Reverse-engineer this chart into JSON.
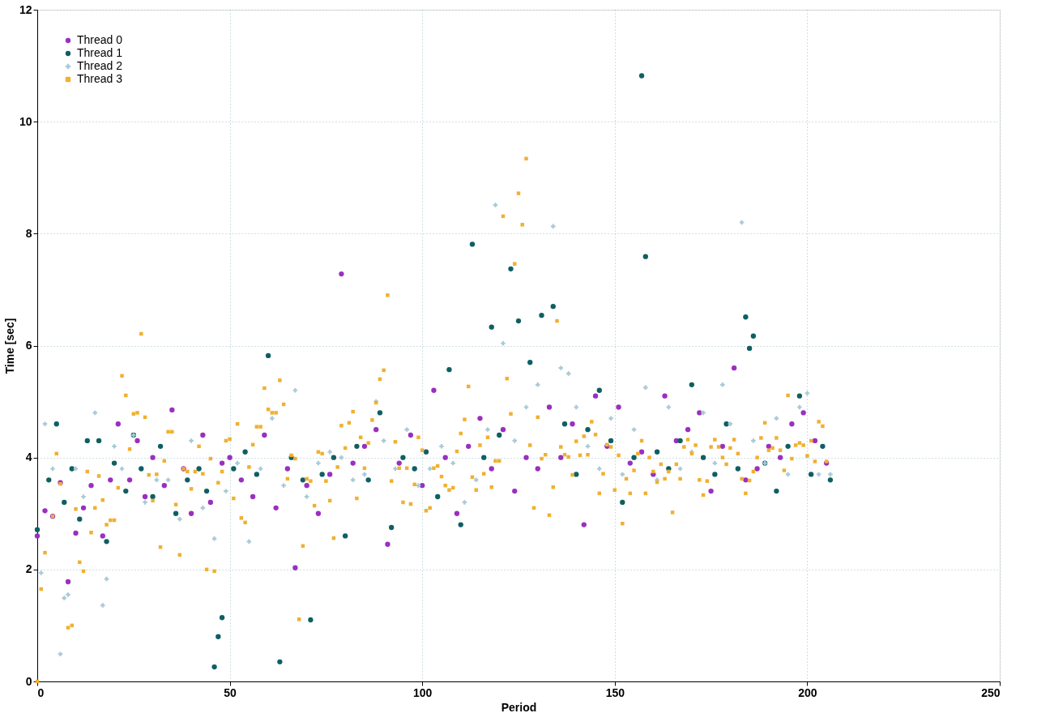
{
  "chart_data": {
    "type": "scatter",
    "xlabel": "Period",
    "ylabel": "Time [sec]",
    "xlim": [
      0,
      250
    ],
    "ylim": [
      0,
      12
    ],
    "xticks": [
      0,
      50,
      100,
      150,
      200,
      250
    ],
    "yticks": [
      0,
      2,
      4,
      6,
      8,
      10,
      12
    ],
    "grid": true,
    "legend": "top left",
    "series": [
      {
        "name": "Thread 0",
        "color": "#9a2fc0",
        "marker": "circle",
        "x": [
          0,
          2,
          4,
          6,
          8,
          10,
          12,
          14,
          17,
          19,
          21,
          24,
          26,
          28,
          30,
          33,
          35,
          38,
          40,
          43,
          45,
          48,
          50,
          53,
          56,
          59,
          62,
          65,
          67,
          70,
          73,
          76,
          79,
          82,
          85,
          88,
          91,
          94,
          97,
          100,
          103,
          106,
          109,
          112,
          115,
          118,
          121,
          124,
          127,
          130,
          133,
          136,
          139,
          142,
          145,
          148,
          151,
          154,
          157,
          160,
          163,
          166,
          169,
          172,
          175,
          178,
          181,
          184,
          187,
          190,
          193,
          196,
          199,
          202,
          205
        ],
        "values": [
          2.6,
          3.05,
          2.95,
          3.55,
          1.78,
          2.65,
          3.1,
          3.5,
          2.6,
          3.6,
          4.6,
          3.6,
          4.3,
          3.3,
          4.0,
          3.5,
          4.85,
          3.8,
          3.0,
          4.4,
          3.2,
          3.9,
          4.0,
          3.6,
          3.3,
          4.4,
          3.1,
          3.8,
          2.03,
          3.5,
          3.0,
          3.7,
          7.28,
          3.9,
          4.2,
          4.5,
          2.45,
          3.9,
          4.4,
          3.5,
          5.2,
          4.0,
          3.0,
          4.2,
          4.7,
          3.8,
          4.5,
          3.4,
          4.0,
          3.8,
          4.9,
          4.0,
          4.6,
          2.8,
          5.1,
          4.2,
          4.9,
          3.9,
          4.1,
          3.7,
          5.1,
          4.3,
          4.5,
          4.8,
          3.4,
          4.2,
          5.6,
          3.6,
          3.8,
          4.2,
          4.0,
          4.6,
          4.8,
          4.3,
          3.9
        ]
      },
      {
        "name": "Thread 1",
        "color": "#0f5f62",
        "marker": "circle",
        "x": [
          0,
          3,
          5,
          7,
          9,
          11,
          13,
          16,
          18,
          20,
          23,
          25,
          27,
          30,
          32,
          36,
          39,
          42,
          44,
          46,
          47,
          48,
          51,
          54,
          57,
          60,
          63,
          66,
          69,
          71,
          74,
          77,
          80,
          83,
          86,
          89,
          92,
          95,
          98,
          101,
          104,
          107,
          110,
          113,
          116,
          118,
          120,
          123,
          125,
          128,
          131,
          134,
          137,
          140,
          143,
          146,
          149,
          152,
          155,
          157,
          158,
          161,
          164,
          167,
          170,
          173,
          176,
          179,
          182,
          184,
          185,
          186,
          189,
          192,
          195,
          198,
          201,
          204,
          206
        ],
        "values": [
          2.71,
          3.6,
          4.6,
          3.2,
          3.8,
          2.9,
          4.3,
          4.3,
          2.5,
          3.9,
          3.4,
          4.4,
          3.8,
          3.3,
          4.2,
          3.0,
          3.6,
          3.8,
          3.4,
          0.26,
          0.8,
          1.14,
          3.8,
          4.1,
          3.7,
          5.82,
          0.35,
          4.0,
          3.6,
          1.1,
          3.7,
          4.0,
          2.6,
          4.2,
          3.6,
          4.8,
          2.75,
          4.0,
          3.8,
          4.1,
          3.3,
          5.57,
          2.8,
          7.81,
          4.0,
          6.33,
          4.4,
          7.37,
          6.44,
          5.7,
          6.54,
          6.7,
          4.6,
          3.7,
          4.5,
          5.2,
          4.3,
          3.2,
          4.0,
          10.82,
          7.59,
          4.1,
          3.8,
          4.3,
          5.3,
          4.0,
          3.7,
          4.6,
          3.8,
          6.51,
          5.95,
          6.17,
          3.9,
          3.4,
          4.2,
          5.1,
          3.7,
          4.2,
          3.6
        ]
      },
      {
        "name": "Thread 2",
        "color": "#a8cad6",
        "marker": "cross",
        "x": [
          1,
          2,
          4,
          6,
          7,
          8,
          10,
          12,
          15,
          17,
          18,
          20,
          22,
          25,
          28,
          31,
          34,
          37,
          40,
          43,
          46,
          49,
          52,
          55,
          58,
          61,
          64,
          67,
          70,
          73,
          76,
          79,
          82,
          85,
          88,
          90,
          93,
          96,
          99,
          102,
          105,
          108,
          111,
          114,
          117,
          119,
          121,
          124,
          127,
          130,
          134,
          136,
          138,
          140,
          143,
          146,
          149,
          152,
          155,
          158,
          161,
          164,
          167,
          170,
          173,
          176,
          178,
          180,
          183,
          186,
          189,
          192,
          195,
          198,
          200,
          203,
          206
        ],
        "values": [
          1.94,
          4.6,
          3.8,
          0.49,
          1.49,
          1.55,
          3.8,
          3.3,
          4.8,
          1.36,
          1.83,
          4.2,
          3.8,
          4.4,
          3.2,
          3.6,
          3.6,
          2.9,
          4.3,
          3.1,
          2.55,
          3.4,
          3.9,
          2.5,
          3.8,
          4.7,
          3.5,
          5.2,
          3.3,
          3.9,
          4.1,
          4.0,
          3.6,
          3.7,
          5.0,
          4.3,
          3.8,
          4.5,
          3.5,
          3.8,
          4.2,
          3.9,
          3.2,
          3.6,
          4.5,
          8.51,
          6.04,
          4.3,
          4.9,
          5.3,
          8.13,
          5.6,
          5.5,
          4.9,
          4.2,
          3.8,
          4.7,
          3.7,
          4.5,
          5.25,
          3.6,
          4.9,
          3.8,
          4.1,
          4.8,
          3.9,
          5.3,
          4.6,
          8.2,
          4.3,
          3.9,
          4.7,
          3.7,
          4.9,
          5.15,
          3.7,
          3.7
        ]
      },
      {
        "name": "Thread 3",
        "color": "#f0b030",
        "marker": "square",
        "x": [
          0,
          1,
          2,
          4,
          5,
          6,
          8,
          9,
          10,
          11,
          12,
          13,
          14,
          15,
          16,
          17,
          18,
          19,
          20,
          21,
          22,
          23,
          24,
          25,
          26,
          27,
          28,
          29,
          30,
          31,
          32,
          33,
          34,
          35,
          36,
          37,
          38,
          39,
          40,
          41,
          42,
          43,
          44,
          45,
          46,
          47,
          48,
          49,
          50,
          51,
          52,
          53,
          54,
          55,
          56,
          57,
          58,
          59,
          60,
          61,
          62,
          63,
          64,
          65,
          66,
          67,
          68,
          69,
          70,
          71,
          72,
          73,
          74,
          75,
          76,
          77,
          78,
          79,
          80,
          81,
          82,
          83,
          84,
          85,
          86,
          87,
          88,
          89,
          90,
          91,
          92,
          93,
          94,
          95,
          96,
          97,
          98,
          99,
          100,
          101,
          102,
          103,
          104,
          105,
          106,
          107,
          108,
          109,
          110,
          111,
          112,
          113,
          114,
          115,
          116,
          117,
          118,
          119,
          120,
          121,
          122,
          123,
          124,
          125,
          126,
          127,
          128,
          129,
          130,
          131,
          132,
          133,
          134,
          135,
          136,
          137,
          138,
          139,
          140,
          141,
          142,
          143,
          144,
          145,
          146,
          147,
          148,
          149,
          150,
          151,
          152,
          153,
          154,
          155,
          156,
          157,
          158,
          159,
          160,
          161,
          162,
          163,
          164,
          165,
          166,
          167,
          168,
          169,
          170,
          171,
          172,
          173,
          174,
          175,
          176,
          177,
          178,
          179,
          180,
          181,
          182,
          183,
          184,
          185,
          186,
          187,
          188,
          189,
          190,
          191,
          192,
          193,
          194,
          195,
          196,
          197,
          198,
          199,
          200,
          201,
          202,
          203,
          204,
          205
        ],
        "values": [
          0.0,
          1.65,
          2.3,
          2.95,
          4.07,
          3.53,
          0.96,
          1.0,
          3.08,
          2.13,
          1.97,
          3.75,
          2.66,
          3.1,
          3.67,
          3.24,
          2.8,
          2.88,
          2.88,
          3.46,
          5.46,
          5.11,
          4.15,
          4.78,
          4.8,
          6.21,
          4.72,
          3.69,
          3.23,
          3.7,
          2.4,
          3.94,
          4.46,
          4.46,
          3.16,
          2.26,
          3.8,
          3.75,
          3.44,
          3.75,
          4.2,
          3.71,
          2.0,
          3.98,
          1.97,
          3.55,
          3.75,
          4.3,
          4.33,
          3.27,
          4.6,
          2.92,
          2.84,
          3.83,
          4.23,
          4.55,
          4.55,
          5.24,
          4.86,
          4.8,
          4.8,
          5.38,
          4.95,
          3.62,
          4.04,
          3.98,
          1.11,
          2.42,
          3.62,
          3.58,
          3.14,
          4.1,
          4.07,
          3.58,
          3.23,
          2.56,
          3.83,
          4.57,
          4.17,
          4.62,
          4.82,
          3.27,
          4.36,
          3.81,
          4.26,
          4.67,
          4.98,
          5.4,
          5.56,
          6.9,
          3.58,
          4.28,
          3.81,
          3.2,
          3.81,
          3.17,
          3.52,
          4.36,
          4.13,
          3.05,
          3.1,
          3.81,
          3.85,
          3.66,
          3.5,
          3.42,
          3.46,
          4.11,
          4.43,
          4.68,
          5.27,
          3.65,
          3.42,
          4.22,
          3.71,
          4.36,
          3.47,
          3.94,
          3.94,
          8.31,
          5.41,
          4.78,
          7.46,
          8.72,
          8.16,
          9.34,
          4.22,
          3.1,
          4.72,
          3.98,
          4.05,
          2.97,
          3.47,
          6.44,
          4.19,
          4.05,
          4.01,
          3.69,
          4.29,
          4.04,
          4.38,
          4.05,
          4.64,
          4.41,
          3.36,
          3.71,
          4.23,
          4.19,
          3.42,
          4.04,
          2.82,
          3.62,
          3.36,
          3.77,
          4.07,
          4.3,
          3.36,
          4.0,
          3.75,
          3.56,
          3.88,
          3.62,
          3.75,
          3.02,
          3.88,
          3.62,
          4.19,
          4.32,
          4.07,
          4.22,
          3.6,
          3.33,
          3.58,
          4.19,
          4.32,
          4.19,
          4.0,
          3.88,
          4.17,
          4.32,
          4.07,
          3.62,
          3.36,
          3.59,
          3.75,
          4.0,
          4.35,
          4.62,
          4.13,
          4.17,
          4.35,
          4.13,
          3.77,
          5.11,
          3.98,
          4.22,
          4.26,
          4.22,
          4.03,
          4.3,
          3.93,
          4.64,
          4.56,
          3.93
        ]
      }
    ]
  }
}
